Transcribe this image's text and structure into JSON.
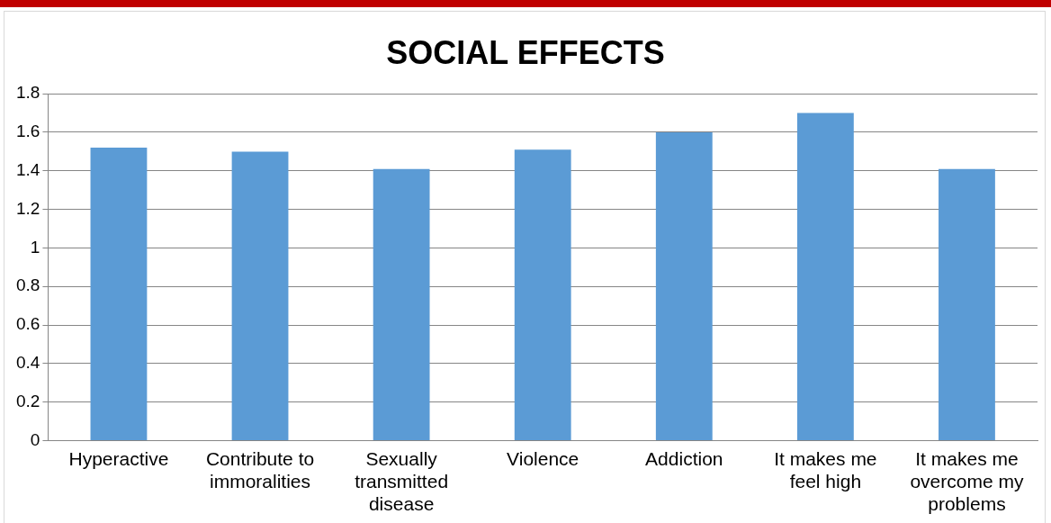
{
  "chart_data": {
    "type": "bar",
    "title": "SOCIAL EFFECTS",
    "categories": [
      "Hyperactive",
      "Contribute to immoralities",
      "Sexually transmitted disease",
      "Violence",
      "Addiction",
      "It makes me feel high",
      "It makes me overcome my problems"
    ],
    "values": [
      1.52,
      1.5,
      1.41,
      1.51,
      1.6,
      1.7,
      1.41
    ],
    "color": "#5b9bd5",
    "ylim": [
      0,
      1.8
    ],
    "yticks": [
      0,
      0.2,
      0.4,
      0.6,
      0.8,
      1,
      1.2,
      1.4,
      1.6,
      1.8
    ],
    "grid": "y"
  }
}
